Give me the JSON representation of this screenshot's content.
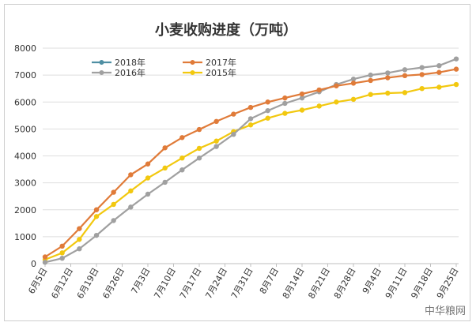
{
  "chart_data": {
    "type": "line",
    "title": "小麦收购进度（万吨）",
    "xlabel": "",
    "ylabel": "",
    "ylim": [
      0,
      8000
    ],
    "yticks": [
      0,
      1000,
      2000,
      3000,
      4000,
      5000,
      6000,
      7000,
      8000
    ],
    "grid": true,
    "legend_position": "top-left",
    "x_tick_labels": [
      "6月5日",
      "6月12日",
      "6月19日",
      "6月26日",
      "7月3日",
      "7月10日",
      "7月17日",
      "7月24日",
      "7月31日",
      "8月7日",
      "8月14日",
      "8月21日",
      "8月28日",
      "9月4日",
      "9月11日",
      "9月18日",
      "9月25日"
    ],
    "n_points": 25,
    "series": [
      {
        "name": "2018年",
        "color": "#4f8fa3",
        "values": []
      },
      {
        "name": "2017年",
        "color": "#e07b39",
        "values": [
          250,
          650,
          1300,
          2000,
          2650,
          3300,
          3700,
          4300,
          4680,
          4980,
          5280,
          5550,
          5800,
          6000,
          6150,
          6300,
          6450,
          6600,
          6700,
          6800,
          6900,
          6980,
          7020,
          7100,
          7220
        ]
      },
      {
        "name": "2016年",
        "color": "#a0a0a0",
        "values": [
          50,
          200,
          550,
          1050,
          1600,
          2100,
          2580,
          3020,
          3480,
          3920,
          4350,
          4800,
          5380,
          5680,
          5950,
          6150,
          6380,
          6650,
          6850,
          7000,
          7080,
          7200,
          7280,
          7350,
          7600
        ]
      },
      {
        "name": "2015年",
        "color": "#f2c80f",
        "values": [
          150,
          400,
          900,
          1750,
          2200,
          2700,
          3180,
          3550,
          3920,
          4280,
          4550,
          4900,
          5150,
          5400,
          5580,
          5700,
          5850,
          6000,
          6100,
          6280,
          6330,
          6350,
          6500,
          6550,
          6650
        ]
      }
    ]
  },
  "watermark": "中华粮网"
}
